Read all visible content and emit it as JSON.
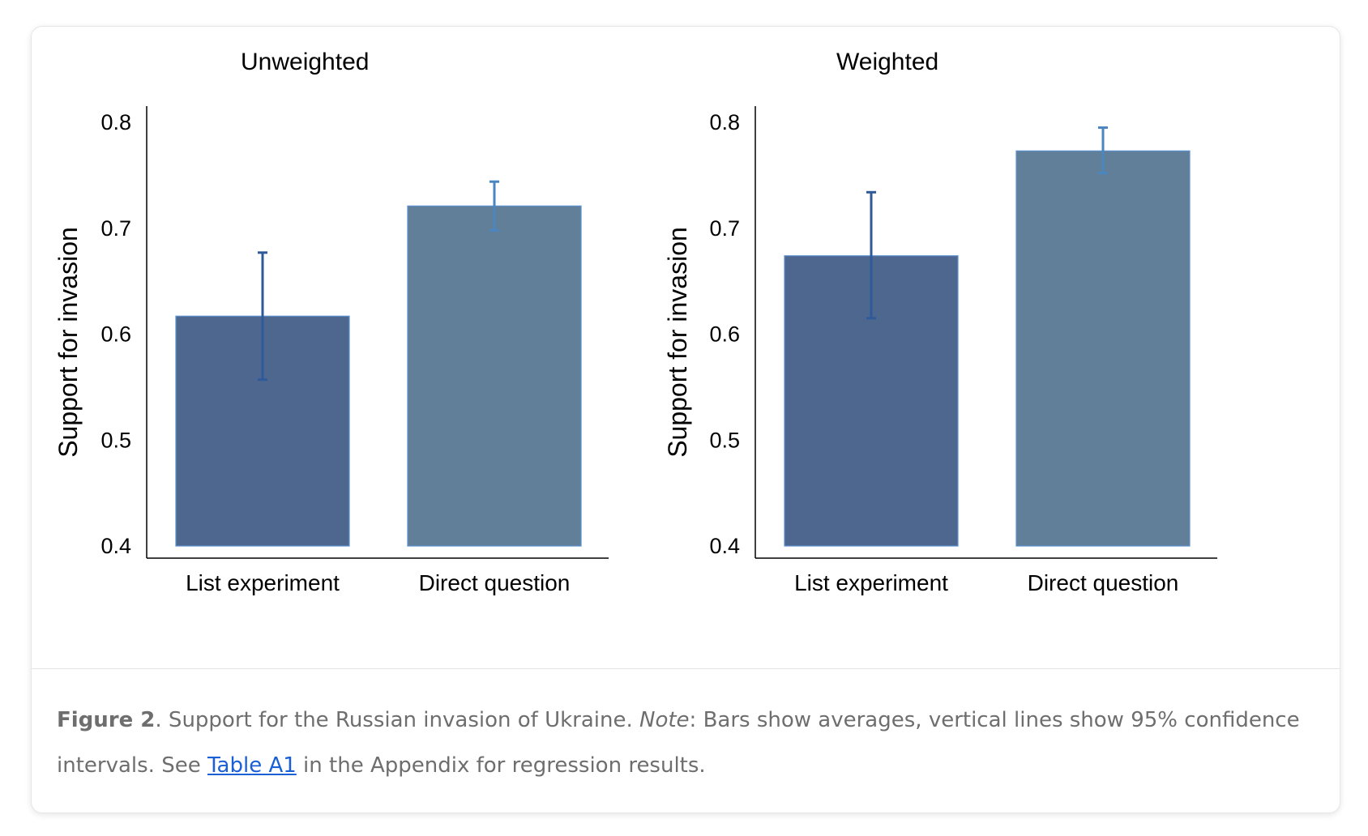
{
  "chart_data": [
    {
      "type": "bar",
      "title": "Unweighted",
      "xlabel": "",
      "ylabel": "Support for invasion",
      "categories": [
        "List experiment",
        "Direct question"
      ],
      "values": [
        0.617,
        0.721
      ],
      "ci_low": [
        0.557,
        0.698
      ],
      "ci_high": [
        0.677,
        0.744
      ],
      "ylim": [
        0.4,
        0.8
      ],
      "yticks": [
        "0.4",
        "0.5",
        "0.6",
        "0.7",
        "0.8"
      ],
      "grid": false,
      "colors": [
        "#4e678e",
        "#627f99"
      ],
      "error_colors": [
        "#2e5a9a",
        "#4a86c0"
      ]
    },
    {
      "type": "bar",
      "title": "Weighted",
      "xlabel": "",
      "ylabel": "Support for invasion",
      "categories": [
        "List experiment",
        "Direct question"
      ],
      "values": [
        0.674,
        0.773
      ],
      "ci_low": [
        0.615,
        0.752
      ],
      "ci_high": [
        0.734,
        0.795
      ],
      "ylim": [
        0.4,
        0.8
      ],
      "yticks": [
        "0.4",
        "0.5",
        "0.6",
        "0.7",
        "0.8"
      ],
      "grid": false,
      "colors": [
        "#4e678e",
        "#627f99"
      ],
      "error_colors": [
        "#2e5a9a",
        "#4a86c0"
      ]
    }
  ],
  "caption": {
    "figure_label": "Figure 2",
    "text_1": ". Support for the Russian invasion of Ukraine. ",
    "note_label": "Note",
    "text_2": ": Bars show averages, vertical lines show 95% confidence intervals. See ",
    "link_text": "Table A1",
    "text_3": " in the Appendix for regression results."
  }
}
